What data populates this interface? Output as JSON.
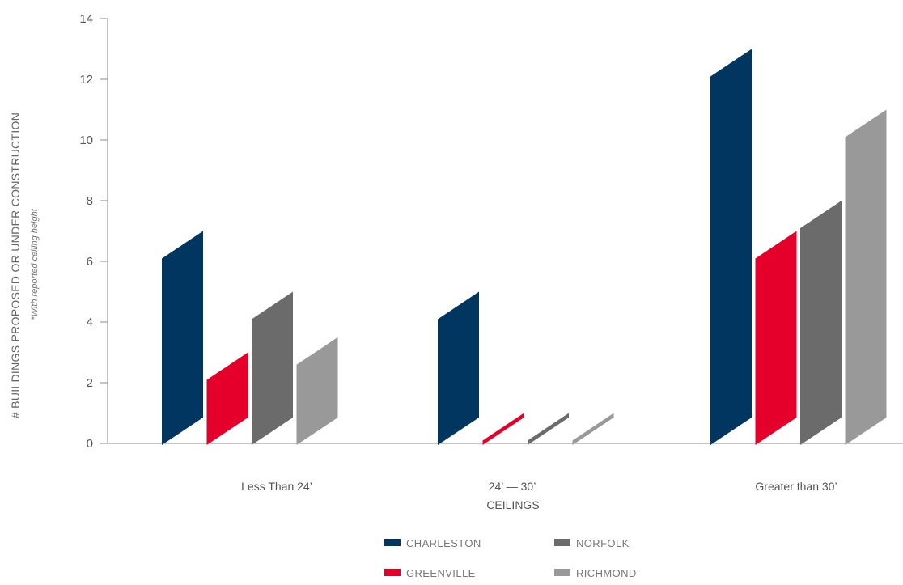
{
  "chart_data": {
    "type": "bar",
    "categories": [
      "Less Than 24’",
      "24’ — 30’",
      "Greater than 30’"
    ],
    "series": [
      {
        "name": "CHARLESTON",
        "color": "#003660",
        "values": [
          7,
          5,
          13
        ]
      },
      {
        "name": "GREENVILLE",
        "color": "#e4002b",
        "values": [
          3,
          1,
          7
        ]
      },
      {
        "name": "NORFOLK",
        "color": "#6b6b6b",
        "values": [
          5,
          1,
          8
        ]
      },
      {
        "name": "RICHMOND",
        "color": "#999999",
        "values": [
          3.5,
          1,
          11
        ]
      }
    ],
    "xlabel": "CEILINGS",
    "ylabel": "# BUILDINGS PROPOSED OR UNDER CONSTRUCTION",
    "ylabel_note": "*With reported ceiling height",
    "ylim": [
      0,
      14
    ],
    "yticks": [
      0,
      2,
      4,
      6,
      8,
      10,
      12,
      14
    ],
    "grid": false,
    "legend_position": "bottom-center"
  }
}
